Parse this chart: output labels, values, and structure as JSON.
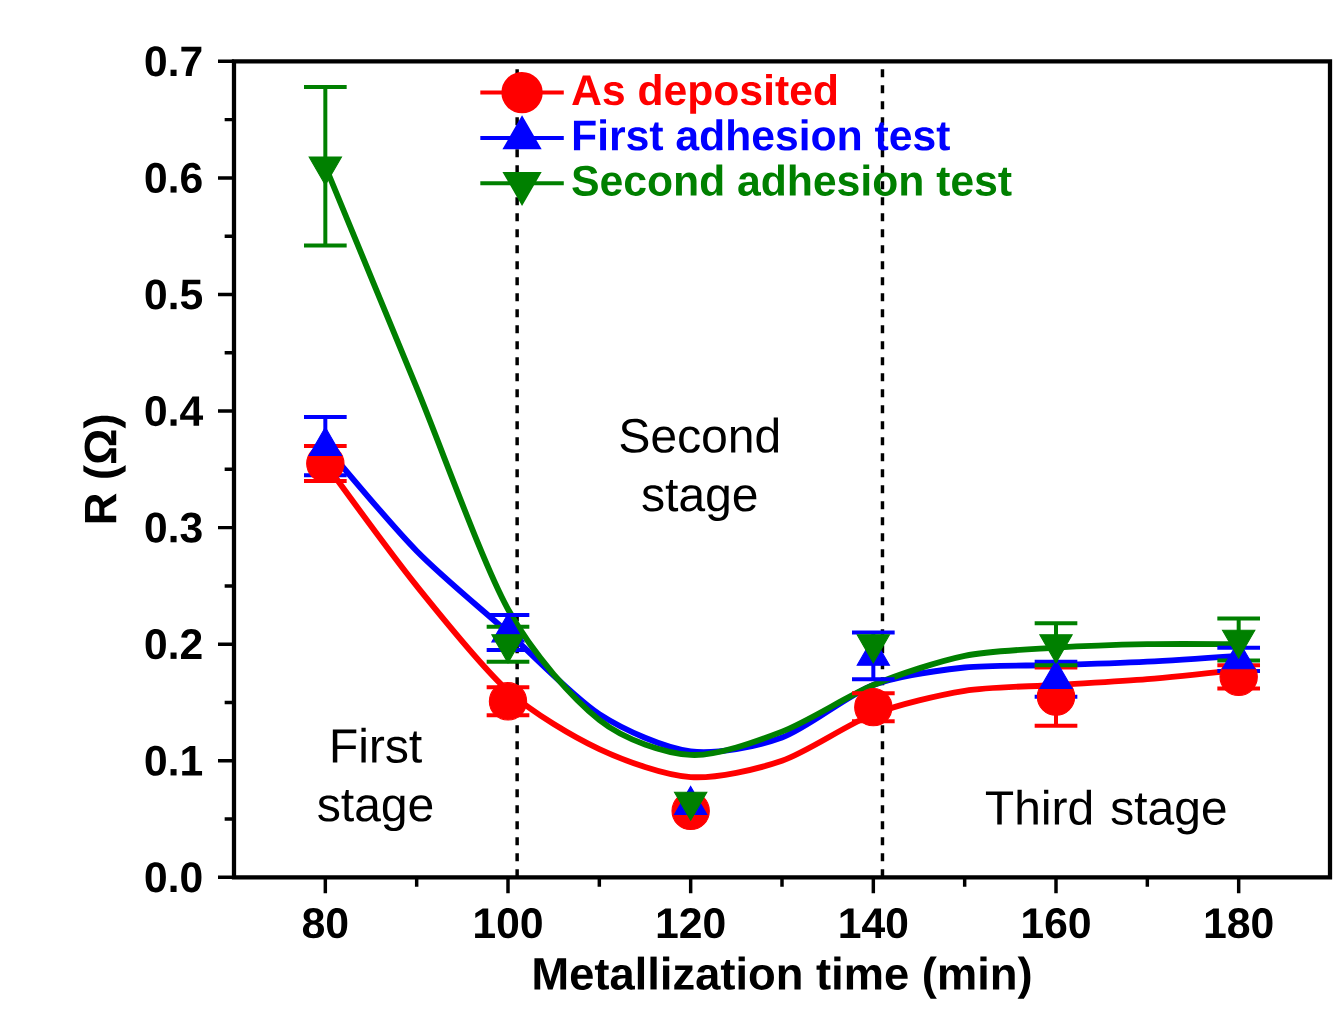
{
  "chart_data": {
    "type": "scatter",
    "xlabel": "Metallization time (min)",
    "ylabel": "R (Ω)",
    "x": [
      80,
      100,
      120,
      140,
      160,
      180
    ],
    "xlim": [
      70,
      190
    ],
    "xticks": [
      80,
      100,
      120,
      140,
      160,
      180
    ],
    "ylim": [
      0,
      0.7
    ],
    "yticks": [
      {
        "value": 0,
        "label": "0.0"
      },
      0.1,
      0.2,
      0.3,
      0.4,
      0.5,
      0.6,
      0.7
    ],
    "legend": "top right",
    "grid": false,
    "series": [
      {
        "name": "As deposited",
        "color": "#ff0000",
        "marker": "circle",
        "values": [
          0.355,
          0.151,
          0.057,
          0.146,
          0.155,
          0.172
        ],
        "errors": [
          0.015,
          0.012,
          null,
          0.012,
          0.025,
          0.01
        ]
      },
      {
        "name": "First adhesion test",
        "color": "#0000ff",
        "marker": "triangle",
        "values": [
          0.37,
          0.21,
          0.062,
          0.19,
          0.17,
          0.187
        ],
        "errors": [
          0.025,
          0.015,
          null,
          0.02,
          0.015,
          0.01
        ]
      },
      {
        "name": "Second adhesion test",
        "color": "#008000",
        "marker": "triangle-down",
        "values": [
          0.61,
          0.2,
          0.065,
          0.2,
          0.2,
          0.204
        ],
        "errors": [
          0.068,
          0.015,
          null,
          null,
          0.018,
          0.018
        ]
      },
      {
        "type": "line",
        "color": "#ff0000",
        "x": [
          80,
          90,
          100,
          110,
          120,
          130,
          140,
          150,
          160,
          170,
          180
        ],
        "values": [
          0.355,
          0.25,
          0.16,
          0.11,
          0.086,
          0.1,
          0.14,
          0.16,
          0.165,
          0.17,
          0.178
        ]
      },
      {
        "type": "line",
        "color": "#0000ff",
        "x": [
          80,
          90,
          100,
          110,
          120,
          130,
          140,
          150,
          160,
          170,
          180
        ],
        "values": [
          0.37,
          0.28,
          0.21,
          0.14,
          0.108,
          0.12,
          0.165,
          0.18,
          0.182,
          0.185,
          0.19
        ]
      },
      {
        "type": "line",
        "color": "#008000",
        "x": [
          80,
          90,
          100,
          110,
          120,
          130,
          140,
          150,
          160,
          170,
          180
        ],
        "values": [
          0.61,
          0.42,
          0.23,
          0.135,
          0.105,
          0.125,
          0.165,
          0.19,
          0.197,
          0.2,
          0.2
        ]
      }
    ],
    "ref_lines": [
      {
        "axis": "x",
        "value": 101,
        "color": "#000000",
        "line_style": "dashed"
      },
      {
        "axis": "x",
        "value": 141,
        "color": "#000000",
        "line_style": "dashed"
      }
    ],
    "annotations": [
      "First stage",
      "Second stage",
      "Third stage"
    ]
  }
}
